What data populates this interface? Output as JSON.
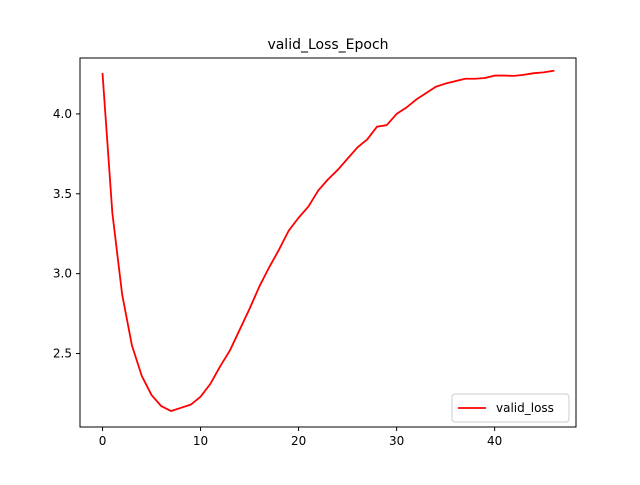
{
  "chart_data": {
    "type": "line",
    "title": "valid_Loss_Epoch",
    "xlabel": "",
    "ylabel": "",
    "xlim": [
      -2.3,
      48.3
    ],
    "ylim": [
      2.04,
      4.35
    ],
    "xticks": [
      0,
      10,
      20,
      30,
      40
    ],
    "yticks": [
      2.5,
      3.0,
      3.5,
      4.0
    ],
    "xtick_labels": [
      "0",
      "10",
      "20",
      "30",
      "40"
    ],
    "ytick_labels": [
      "2.5",
      "3.0",
      "3.5",
      "4.0"
    ],
    "grid": false,
    "legend_position": "lower-right",
    "series": [
      {
        "name": "valid_loss",
        "color": "#ff0000",
        "x": [
          0,
          1,
          2,
          3,
          4,
          5,
          6,
          7,
          8,
          9,
          10,
          11,
          12,
          13,
          14,
          15,
          16,
          17,
          18,
          19,
          20,
          21,
          22,
          23,
          24,
          25,
          26,
          27,
          28,
          29,
          30,
          31,
          32,
          33,
          34,
          35,
          36,
          37,
          38,
          39,
          40,
          41,
          42,
          43,
          44,
          45,
          46
        ],
        "y": [
          4.25,
          3.38,
          2.87,
          2.55,
          2.36,
          2.24,
          2.17,
          2.14,
          2.16,
          2.18,
          2.23,
          2.31,
          2.42,
          2.52,
          2.65,
          2.78,
          2.92,
          3.04,
          3.15,
          3.27,
          3.35,
          3.42,
          3.52,
          3.59,
          3.65,
          3.72,
          3.79,
          3.84,
          3.92,
          3.93,
          4.0,
          4.04,
          4.09,
          4.13,
          4.17,
          4.19,
          4.205,
          4.22,
          4.22,
          4.225,
          4.24,
          4.24,
          4.238,
          4.245,
          4.255,
          4.26,
          4.27
        ]
      }
    ]
  }
}
